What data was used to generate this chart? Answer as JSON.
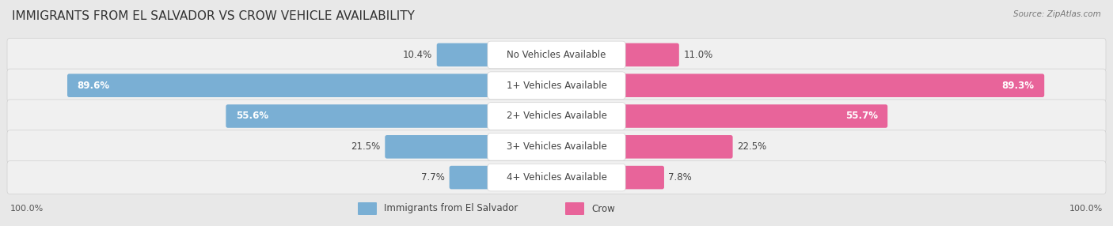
{
  "title": "IMMIGRANTS FROM EL SALVADOR VS CROW VEHICLE AVAILABILITY",
  "source": "Source: ZipAtlas.com",
  "categories": [
    "No Vehicles Available",
    "1+ Vehicles Available",
    "2+ Vehicles Available",
    "3+ Vehicles Available",
    "4+ Vehicles Available"
  ],
  "left_values": [
    10.4,
    89.6,
    55.6,
    21.5,
    7.7
  ],
  "right_values": [
    11.0,
    89.3,
    55.7,
    22.5,
    7.8
  ],
  "left_label": "Immigrants from El Salvador",
  "right_label": "Crow",
  "left_color": "#7aafd4",
  "right_color": "#e8649a",
  "left_color_inner": "#aecce8",
  "right_color_inner": "#f0a0c0",
  "max_value": 100.0,
  "bg_color": "#e8e8e8",
  "row_bg": "#f4f4f4",
  "axis_label_left": "100.0%",
  "axis_label_right": "100.0%",
  "title_fontsize": 11,
  "label_fontsize": 8.5,
  "category_fontsize": 8.5,
  "fig_width": 14.06,
  "fig_height": 2.86
}
